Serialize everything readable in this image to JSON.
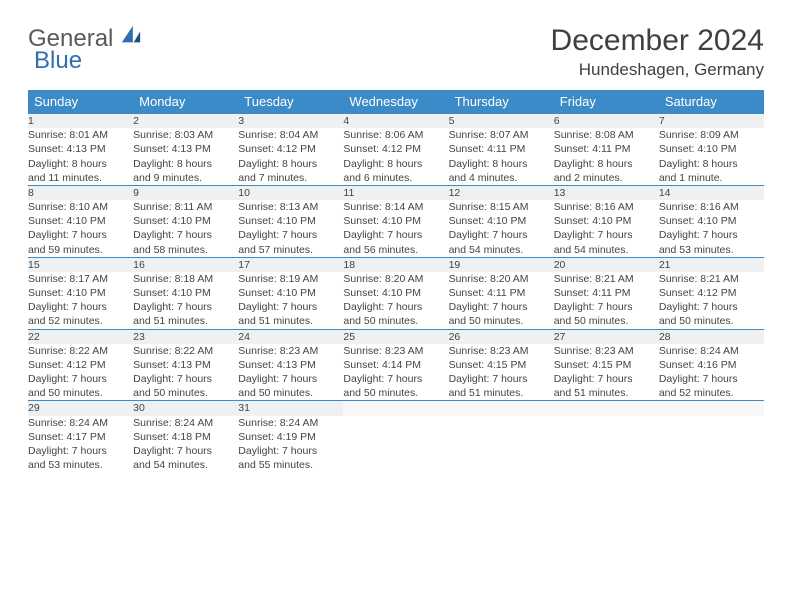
{
  "brand": {
    "line1": "General",
    "line2": "Blue"
  },
  "title": "December 2024",
  "location": "Hundeshagen, Germany",
  "colors": {
    "header_bg": "#3b8bc9",
    "header_text": "#ffffff",
    "daynum_bg": "#eef0f1",
    "rule": "#3b8bc9",
    "logo_blue": "#2f6fb1",
    "logo_gray": "#5a5a5a"
  },
  "weekdays": [
    "Sunday",
    "Monday",
    "Tuesday",
    "Wednesday",
    "Thursday",
    "Friday",
    "Saturday"
  ],
  "weeks": [
    [
      {
        "n": "1",
        "sr": "Sunrise: 8:01 AM",
        "ss": "Sunset: 4:13 PM",
        "d1": "Daylight: 8 hours",
        "d2": "and 11 minutes."
      },
      {
        "n": "2",
        "sr": "Sunrise: 8:03 AM",
        "ss": "Sunset: 4:13 PM",
        "d1": "Daylight: 8 hours",
        "d2": "and 9 minutes."
      },
      {
        "n": "3",
        "sr": "Sunrise: 8:04 AM",
        "ss": "Sunset: 4:12 PM",
        "d1": "Daylight: 8 hours",
        "d2": "and 7 minutes."
      },
      {
        "n": "4",
        "sr": "Sunrise: 8:06 AM",
        "ss": "Sunset: 4:12 PM",
        "d1": "Daylight: 8 hours",
        "d2": "and 6 minutes."
      },
      {
        "n": "5",
        "sr": "Sunrise: 8:07 AM",
        "ss": "Sunset: 4:11 PM",
        "d1": "Daylight: 8 hours",
        "d2": "and 4 minutes."
      },
      {
        "n": "6",
        "sr": "Sunrise: 8:08 AM",
        "ss": "Sunset: 4:11 PM",
        "d1": "Daylight: 8 hours",
        "d2": "and 2 minutes."
      },
      {
        "n": "7",
        "sr": "Sunrise: 8:09 AM",
        "ss": "Sunset: 4:10 PM",
        "d1": "Daylight: 8 hours",
        "d2": "and 1 minute."
      }
    ],
    [
      {
        "n": "8",
        "sr": "Sunrise: 8:10 AM",
        "ss": "Sunset: 4:10 PM",
        "d1": "Daylight: 7 hours",
        "d2": "and 59 minutes."
      },
      {
        "n": "9",
        "sr": "Sunrise: 8:11 AM",
        "ss": "Sunset: 4:10 PM",
        "d1": "Daylight: 7 hours",
        "d2": "and 58 minutes."
      },
      {
        "n": "10",
        "sr": "Sunrise: 8:13 AM",
        "ss": "Sunset: 4:10 PM",
        "d1": "Daylight: 7 hours",
        "d2": "and 57 minutes."
      },
      {
        "n": "11",
        "sr": "Sunrise: 8:14 AM",
        "ss": "Sunset: 4:10 PM",
        "d1": "Daylight: 7 hours",
        "d2": "and 56 minutes."
      },
      {
        "n": "12",
        "sr": "Sunrise: 8:15 AM",
        "ss": "Sunset: 4:10 PM",
        "d1": "Daylight: 7 hours",
        "d2": "and 54 minutes."
      },
      {
        "n": "13",
        "sr": "Sunrise: 8:16 AM",
        "ss": "Sunset: 4:10 PM",
        "d1": "Daylight: 7 hours",
        "d2": "and 54 minutes."
      },
      {
        "n": "14",
        "sr": "Sunrise: 8:16 AM",
        "ss": "Sunset: 4:10 PM",
        "d1": "Daylight: 7 hours",
        "d2": "and 53 minutes."
      }
    ],
    [
      {
        "n": "15",
        "sr": "Sunrise: 8:17 AM",
        "ss": "Sunset: 4:10 PM",
        "d1": "Daylight: 7 hours",
        "d2": "and 52 minutes."
      },
      {
        "n": "16",
        "sr": "Sunrise: 8:18 AM",
        "ss": "Sunset: 4:10 PM",
        "d1": "Daylight: 7 hours",
        "d2": "and 51 minutes."
      },
      {
        "n": "17",
        "sr": "Sunrise: 8:19 AM",
        "ss": "Sunset: 4:10 PM",
        "d1": "Daylight: 7 hours",
        "d2": "and 51 minutes."
      },
      {
        "n": "18",
        "sr": "Sunrise: 8:20 AM",
        "ss": "Sunset: 4:10 PM",
        "d1": "Daylight: 7 hours",
        "d2": "and 50 minutes."
      },
      {
        "n": "19",
        "sr": "Sunrise: 8:20 AM",
        "ss": "Sunset: 4:11 PM",
        "d1": "Daylight: 7 hours",
        "d2": "and 50 minutes."
      },
      {
        "n": "20",
        "sr": "Sunrise: 8:21 AM",
        "ss": "Sunset: 4:11 PM",
        "d1": "Daylight: 7 hours",
        "d2": "and 50 minutes."
      },
      {
        "n": "21",
        "sr": "Sunrise: 8:21 AM",
        "ss": "Sunset: 4:12 PM",
        "d1": "Daylight: 7 hours",
        "d2": "and 50 minutes."
      }
    ],
    [
      {
        "n": "22",
        "sr": "Sunrise: 8:22 AM",
        "ss": "Sunset: 4:12 PM",
        "d1": "Daylight: 7 hours",
        "d2": "and 50 minutes."
      },
      {
        "n": "23",
        "sr": "Sunrise: 8:22 AM",
        "ss": "Sunset: 4:13 PM",
        "d1": "Daylight: 7 hours",
        "d2": "and 50 minutes."
      },
      {
        "n": "24",
        "sr": "Sunrise: 8:23 AM",
        "ss": "Sunset: 4:13 PM",
        "d1": "Daylight: 7 hours",
        "d2": "and 50 minutes."
      },
      {
        "n": "25",
        "sr": "Sunrise: 8:23 AM",
        "ss": "Sunset: 4:14 PM",
        "d1": "Daylight: 7 hours",
        "d2": "and 50 minutes."
      },
      {
        "n": "26",
        "sr": "Sunrise: 8:23 AM",
        "ss": "Sunset: 4:15 PM",
        "d1": "Daylight: 7 hours",
        "d2": "and 51 minutes."
      },
      {
        "n": "27",
        "sr": "Sunrise: 8:23 AM",
        "ss": "Sunset: 4:15 PM",
        "d1": "Daylight: 7 hours",
        "d2": "and 51 minutes."
      },
      {
        "n": "28",
        "sr": "Sunrise: 8:24 AM",
        "ss": "Sunset: 4:16 PM",
        "d1": "Daylight: 7 hours",
        "d2": "and 52 minutes."
      }
    ],
    [
      {
        "n": "29",
        "sr": "Sunrise: 8:24 AM",
        "ss": "Sunset: 4:17 PM",
        "d1": "Daylight: 7 hours",
        "d2": "and 53 minutes."
      },
      {
        "n": "30",
        "sr": "Sunrise: 8:24 AM",
        "ss": "Sunset: 4:18 PM",
        "d1": "Daylight: 7 hours",
        "d2": "and 54 minutes."
      },
      {
        "n": "31",
        "sr": "Sunrise: 8:24 AM",
        "ss": "Sunset: 4:19 PM",
        "d1": "Daylight: 7 hours",
        "d2": "and 55 minutes."
      },
      null,
      null,
      null,
      null
    ]
  ]
}
